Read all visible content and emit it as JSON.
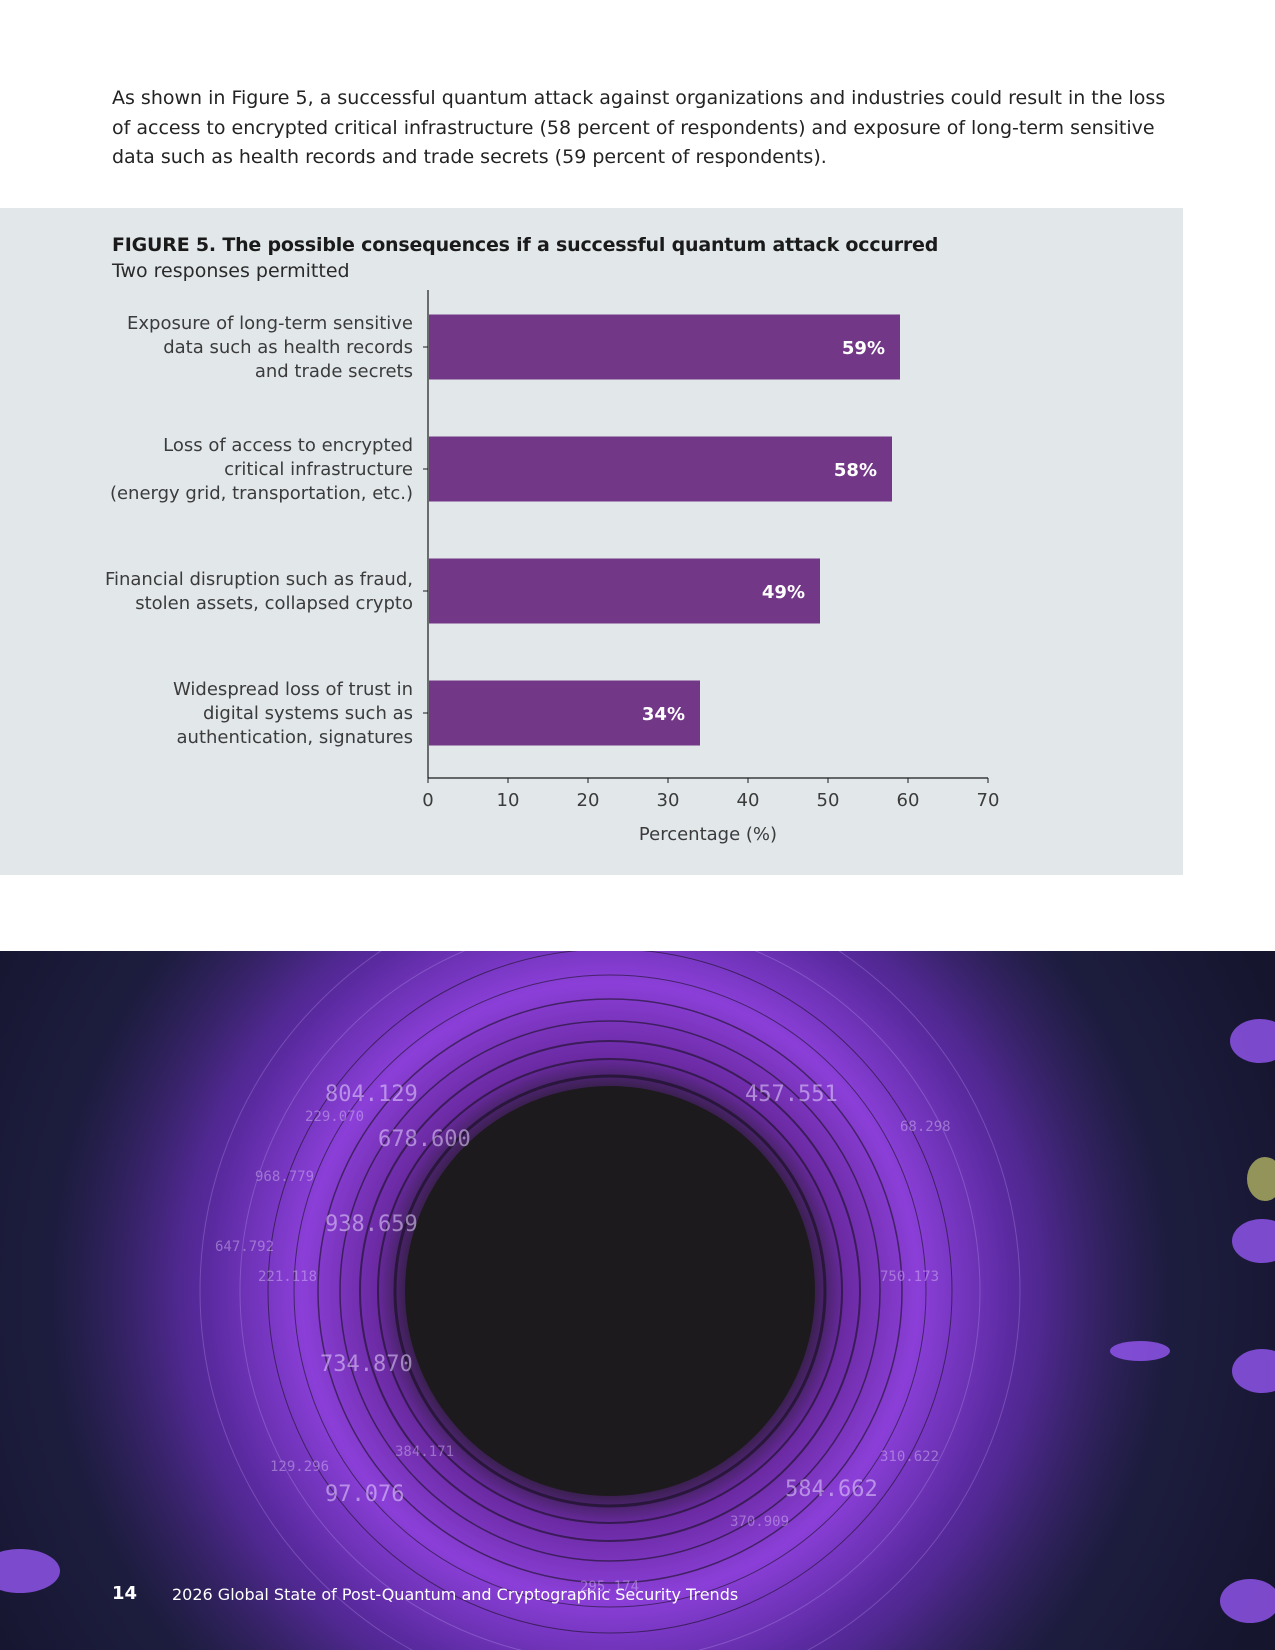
{
  "intro_text": "As shown in Figure 5, a successful quantum attack against organizations and industries could result in the loss of access to encrypted critical infrastructure (58 percent of respondents) and exposure of long-term sensitive data such as health records and trade secrets (59 percent of respondents).",
  "figure": {
    "title": "FIGURE 5. The possible consequences if a successful quantum attack occurred",
    "subtitle": "Two responses permitted"
  },
  "chart_data": {
    "type": "bar",
    "orientation": "horizontal",
    "categories": [
      [
        "Exposure of long-term sensitive",
        "data such as health records",
        "and trade secrets"
      ],
      [
        "Loss of access to encrypted",
        "critical infrastructure",
        "(energy grid, transportation, etc.)"
      ],
      [
        "Financial disruption such as fraud,",
        "stolen assets, collapsed crypto"
      ],
      [
        "Widespread loss of trust in",
        "digital systems such as",
        "authentication, signatures"
      ]
    ],
    "values": [
      59,
      58,
      49,
      34
    ],
    "value_labels": [
      "59%",
      "58%",
      "49%",
      "34%"
    ],
    "xlabel": "Percentage (%)",
    "ylabel": "",
    "xlim": [
      0,
      70
    ],
    "xticks": [
      0,
      10,
      20,
      30,
      40,
      50,
      60,
      70
    ],
    "bar_color": "#733787",
    "grid": false,
    "legend": "none"
  },
  "footer": {
    "page_number": "14",
    "doc_title": "2026 Global State of Post-Quantum and Cryptographic Security Trends"
  },
  "colors": {
    "panel_bg": "#e2e7ea",
    "bar": "#733787",
    "hero_purple": "#8a3fd6"
  }
}
